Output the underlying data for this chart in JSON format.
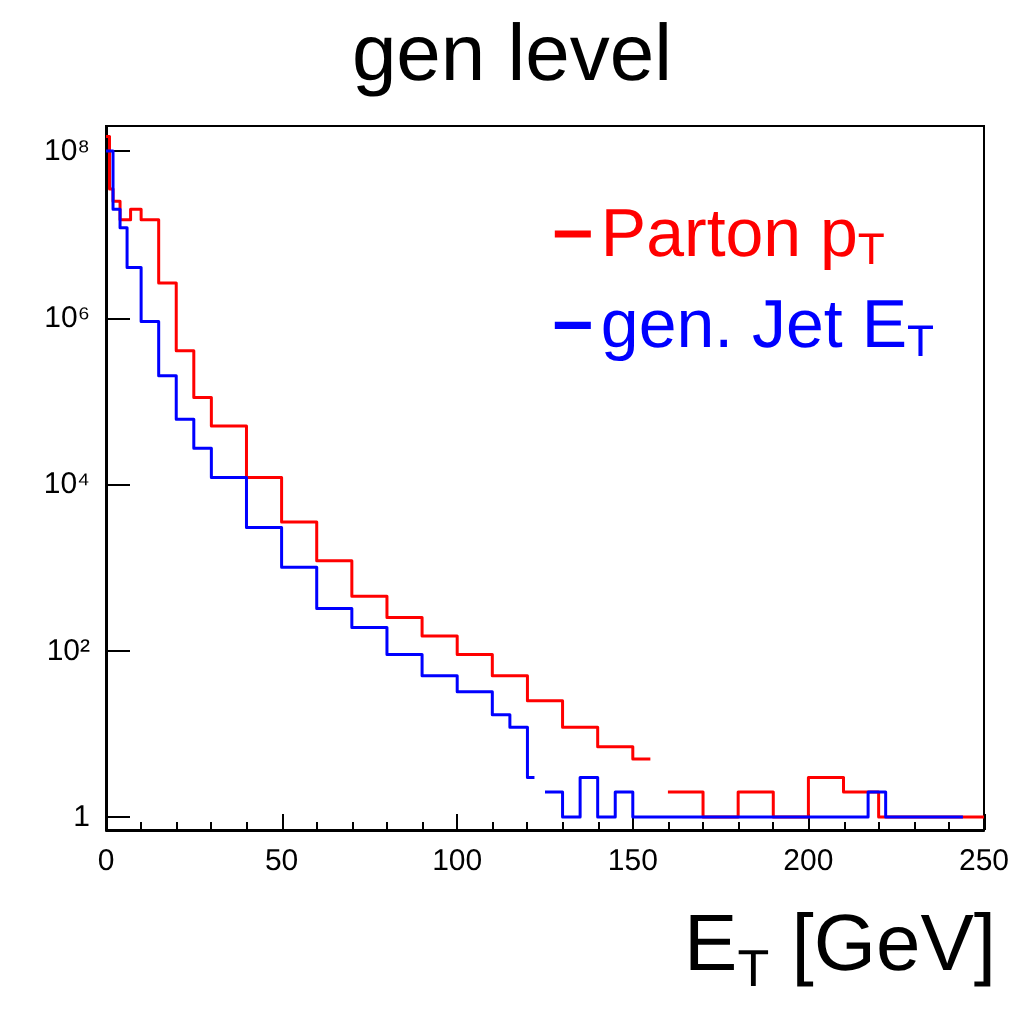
{
  "chart_data": {
    "type": "step",
    "title": "gen level",
    "xlabel": "E$_{T}$ [GeV]",
    "log": "y",
    "legend": "top right",
    "marker": "none",
    "grid": false,
    "xlim": [
      0,
      250
    ],
    "xticks": [
      0,
      50,
      100,
      150,
      200,
      250
    ],
    "ylim": [
      0.7,
      200000000
    ],
    "yticks": [
      {
        "value": 1,
        "label": "1"
      },
      {
        "value": 100,
        "label": "10²"
      },
      {
        "value": 10000,
        "label": "10⁴"
      },
      {
        "value": 1000000,
        "label": "10⁶"
      },
      {
        "value": 100000000,
        "label": "10⁸"
      }
    ],
    "series": [
      {
        "name": "Parton p$_{T}$",
        "color": "#ff0000",
        "x": [
          0,
          1,
          2,
          4,
          7,
          10,
          15,
          20,
          25,
          30,
          40,
          50,
          60,
          70,
          80,
          90,
          100,
          110,
          120,
          130,
          140,
          150,
          155,
          160,
          170,
          180,
          190,
          200,
          210,
          220,
          230,
          240,
          250
        ],
        "values": [
          150000000,
          35000000,
          25000000,
          15000000,
          20000000,
          15000000,
          2600000,
          400000,
          110000,
          50000,
          12000,
          3500,
          1200,
          450,
          250,
          150,
          90,
          50,
          25,
          12,
          7,
          5,
          null,
          2,
          1,
          2,
          1,
          3,
          2,
          1,
          1,
          1,
          1
        ]
      },
      {
        "name": "gen. Jet E$_{T}$",
        "color": "#0000ff",
        "x": [
          0,
          2,
          4,
          6,
          10,
          15,
          20,
          25,
          30,
          40,
          50,
          60,
          70,
          80,
          90,
          100,
          110,
          115,
          120,
          122,
          125,
          130,
          135,
          140,
          145,
          150,
          160,
          170,
          180,
          190,
          200,
          210,
          217,
          222,
          230,
          240,
          244
        ],
        "values": [
          100000000,
          20000000,
          12000000,
          4000000,
          900000,
          200000,
          60000,
          27000,
          12000,
          3000,
          1000,
          320,
          190,
          90,
          50,
          32,
          17,
          12,
          3,
          null,
          2,
          1,
          3,
          1,
          2,
          1,
          1,
          1,
          1,
          1,
          1,
          1,
          2,
          1,
          1,
          1,
          1
        ]
      }
    ]
  }
}
